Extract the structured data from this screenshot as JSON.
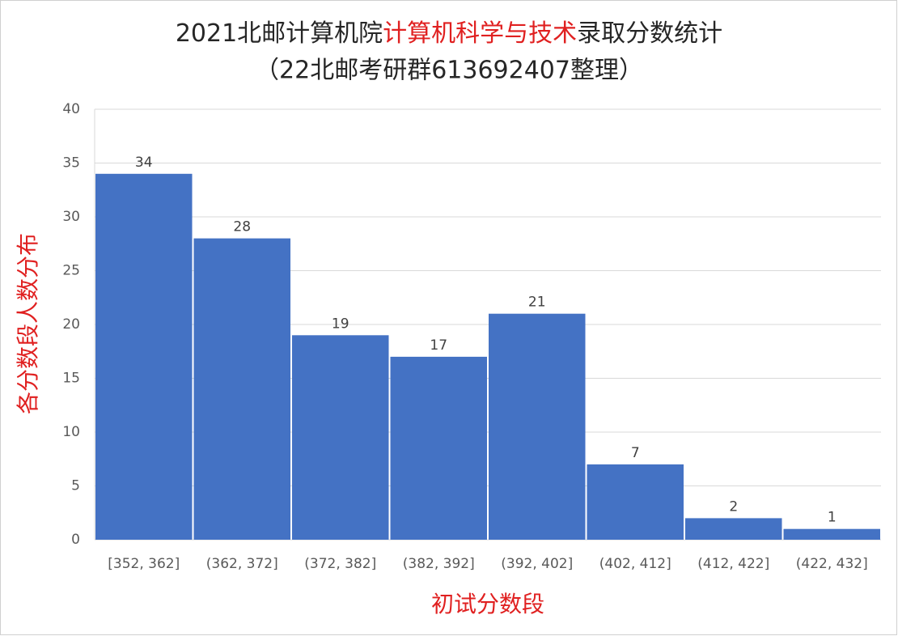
{
  "chart_data": {
    "type": "bar",
    "title_parts": [
      "2021北邮计算机院",
      "计算机科学与技术",
      "录取分数统计"
    ],
    "subtitle": "（22北邮考研群613692407整理）",
    "x_label": "初试分数段",
    "y_label": "各分数段人数分布",
    "categories": [
      "[352, 362]",
      "(362, 372]",
      "(372, 382]",
      "(382, 392]",
      "(392, 402]",
      "(402, 412]",
      "(412, 422]",
      "(422, 432]"
    ],
    "values": [
      34,
      28,
      19,
      17,
      21,
      7,
      2,
      1
    ],
    "color": "#4472c4",
    "ylim": [
      0,
      40
    ],
    "yticks": [
      0,
      5,
      10,
      15,
      20,
      25,
      30,
      35,
      40
    ],
    "grid": true
  }
}
